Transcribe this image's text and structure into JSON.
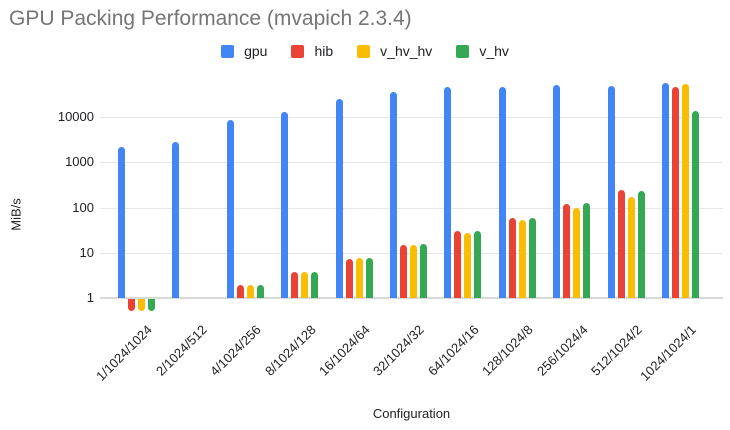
{
  "chart_data": {
    "type": "bar",
    "title": "GPU Packing Performance (mvapich 2.3.4)",
    "xlabel": "Configuration",
    "ylabel": "MiB/s",
    "y_scale": "log",
    "y_ticks": [
      1,
      10,
      100,
      1000,
      10000
    ],
    "ylim": [
      0.45,
      60000
    ],
    "grid": true,
    "legend_position": "top-center",
    "categories": [
      "1/1024/1024",
      "2/1024/512",
      "4/1024/256",
      "8/1024/128",
      "16/1024/64",
      "32/1024/32",
      "64/1024/16",
      "128/1024/8",
      "256/1024/4",
      "512/1024/2",
      "1024/1024/1"
    ],
    "series": [
      {
        "name": "gpu",
        "color": "#4285F4",
        "values": [
          2200,
          2800,
          8500,
          13000,
          25000,
          36000,
          45000,
          47000,
          52000,
          48000,
          55000
        ]
      },
      {
        "name": "hib",
        "color": "#EA4335",
        "values": [
          0.55,
          null,
          1.9,
          3.8,
          7.4,
          15,
          30,
          60,
          120,
          240,
          46000
        ]
      },
      {
        "name": "v_hv_hv",
        "color": "#FBBC04",
        "values": [
          0.55,
          null,
          1.9,
          3.8,
          7.5,
          15,
          27,
          53,
          100,
          170,
          54000
        ]
      },
      {
        "name": "v_hv",
        "color": "#34A853",
        "values": [
          0.55,
          null,
          1.9,
          3.8,
          7.5,
          15.5,
          30,
          60,
          125,
          230,
          13500
        ]
      }
    ]
  }
}
